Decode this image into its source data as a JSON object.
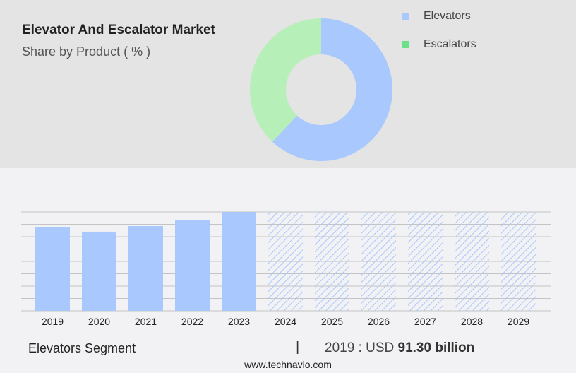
{
  "title": "Elevator And Escalator Market",
  "subtitle": "Share by Product ( % )",
  "colors": {
    "elevators": "#a8c8fe",
    "escalators": "#b6f0b8",
    "escalators_legend": "#6de08a",
    "grid": "#c4c4c4"
  },
  "chart_data": [
    {
      "type": "pie",
      "donut": true,
      "legend_position": "right",
      "series": [
        {
          "name": "Elevators",
          "value": 62
        },
        {
          "name": "Escalators",
          "value": 38
        }
      ]
    },
    {
      "type": "bar",
      "categories": [
        "2019",
        "2020",
        "2021",
        "2022",
        "2023",
        "2024",
        "2025",
        "2026",
        "2027",
        "2028",
        "2029"
      ],
      "values": [
        91.3,
        86.7,
        92.8,
        99.8,
        108.3,
        null,
        null,
        null,
        null,
        null,
        null
      ],
      "forecast_categories": [
        "2024",
        "2025",
        "2026",
        "2027",
        "2028",
        "2029"
      ],
      "unit": "USD billion",
      "ylim": [
        0,
        108.3
      ],
      "grid": true
    }
  ],
  "footer": {
    "segment": "Elevators Segment",
    "separator": "|",
    "year_label": "2019 : USD",
    "value": "91.30 billion",
    "website": "www.technavio.com"
  }
}
